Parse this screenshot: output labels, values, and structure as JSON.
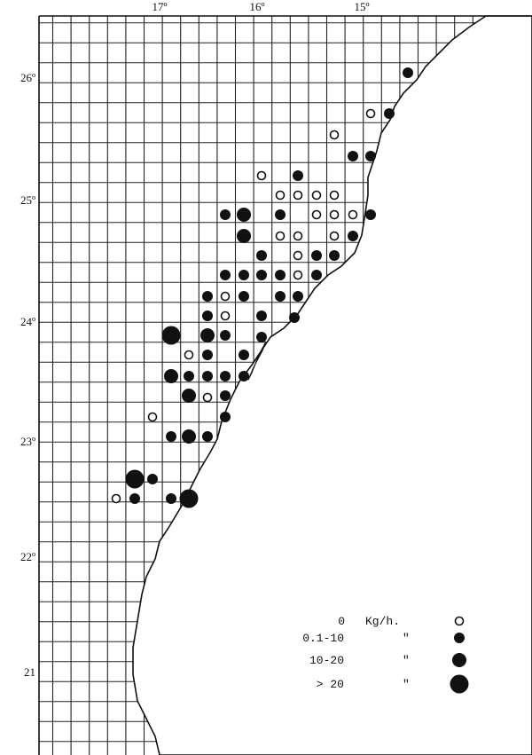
{
  "map": {
    "longitude_labels": [
      "17º",
      "16º",
      "15º"
    ],
    "latitude_labels": [
      "26º",
      "25º",
      "24º",
      "23º",
      "22º",
      "21"
    ],
    "legend": [
      {
        "range": "0",
        "unit": "Kg/h."
      },
      {
        "range": "0.1-10",
        "unit": "\""
      },
      {
        "range": "10-20",
        "unit": "\""
      },
      {
        "range": "> 20",
        "unit": "\""
      }
    ]
  }
}
